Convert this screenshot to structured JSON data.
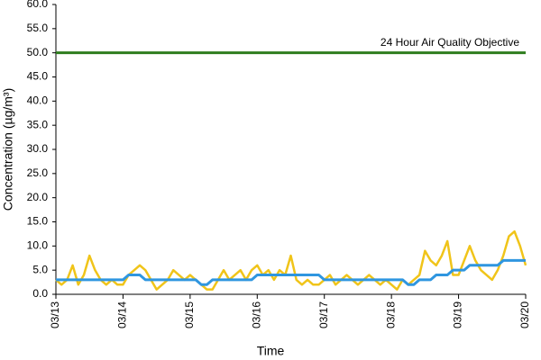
{
  "chart_data": {
    "type": "line",
    "xlabel": "Time",
    "ylabel": "Concentration (µg/m³)",
    "x": [
      0,
      2,
      4,
      6,
      8,
      10,
      12,
      14,
      16,
      18,
      20,
      22,
      24,
      26,
      28,
      30,
      32,
      34,
      36,
      38,
      40,
      42,
      44,
      46,
      48,
      50,
      52,
      54,
      56,
      58,
      60,
      62,
      64,
      66,
      68,
      70,
      72,
      74,
      76,
      78,
      80,
      82,
      84,
      86,
      88,
      90,
      92,
      94,
      96,
      98,
      100,
      102,
      104,
      106,
      108,
      110,
      112,
      114,
      116,
      118,
      120,
      122,
      124,
      126,
      128,
      130,
      132,
      134,
      136,
      138,
      140,
      142,
      144,
      146,
      148,
      150,
      152,
      154,
      156,
      158,
      160,
      162,
      164,
      166,
      168
    ],
    "series": [
      {
        "color": "#f0c419",
        "values": [
          3,
          2,
          3,
          6,
          2,
          4,
          8,
          5,
          3,
          2,
          3,
          2,
          2,
          4,
          5,
          6,
          5,
          3,
          1,
          2,
          3,
          5,
          4,
          3,
          4,
          3,
          2,
          1,
          1,
          3,
          5,
          3,
          4,
          5,
          3,
          5,
          6,
          4,
          5,
          3,
          5,
          4,
          8,
          3,
          2,
          3,
          2,
          2,
          3,
          4,
          2,
          3,
          4,
          3,
          2,
          3,
          4,
          3,
          2,
          3,
          2,
          1,
          3,
          2,
          3,
          4,
          9,
          7,
          6,
          8,
          11,
          4,
          4,
          7,
          10,
          7,
          5,
          4,
          3,
          5,
          8,
          12,
          13,
          10,
          6
        ]
      },
      {
        "color": "#2f96e0",
        "values": [
          3,
          3,
          3,
          3,
          3,
          3,
          3,
          3,
          3,
          3,
          3,
          3,
          3,
          4,
          4,
          4,
          3,
          3,
          3,
          3,
          3,
          3,
          3,
          3,
          3,
          3,
          2,
          2,
          3,
          3,
          3,
          3,
          3,
          3,
          3,
          3,
          4,
          4,
          4,
          4,
          4,
          4,
          4,
          4,
          4,
          4,
          4,
          4,
          3,
          3,
          3,
          3,
          3,
          3,
          3,
          3,
          3,
          3,
          3,
          3,
          3,
          3,
          3,
          2,
          2,
          3,
          3,
          3,
          4,
          4,
          4,
          5,
          5,
          5,
          6,
          6,
          6,
          6,
          6,
          6,
          7,
          7,
          7,
          7,
          7
        ]
      }
    ],
    "objective": {
      "value": 50,
      "label": "24 Hour Air Quality Objective",
      "color": "#2e7d1e"
    },
    "xlim": [
      0,
      168
    ],
    "xticks": [
      {
        "value": 0,
        "label": "03/13"
      },
      {
        "value": 24,
        "label": "03/14"
      },
      {
        "value": 48,
        "label": "03/15"
      },
      {
        "value": 72,
        "label": "03/16"
      },
      {
        "value": 96,
        "label": "03/17"
      },
      {
        "value": 120,
        "label": "03/18"
      },
      {
        "value": 144,
        "label": "03/19"
      },
      {
        "value": 168,
        "label": "03/20"
      }
    ],
    "ylim": [
      0,
      60
    ],
    "yticks": [
      {
        "value": 0,
        "label": "0.0"
      },
      {
        "value": 5,
        "label": "5.0"
      },
      {
        "value": 10,
        "label": "10.0"
      },
      {
        "value": 15,
        "label": "15.0"
      },
      {
        "value": 20,
        "label": "20.0"
      },
      {
        "value": 25,
        "label": "25.0"
      },
      {
        "value": 30,
        "label": "30.0"
      },
      {
        "value": 35,
        "label": "35.0"
      },
      {
        "value": 40,
        "label": "40.0"
      },
      {
        "value": 45,
        "label": "45.0"
      },
      {
        "value": 50,
        "label": "50.0"
      },
      {
        "value": 55,
        "label": "55.0"
      },
      {
        "value": 60,
        "label": "60.0"
      }
    ],
    "grid": false
  }
}
